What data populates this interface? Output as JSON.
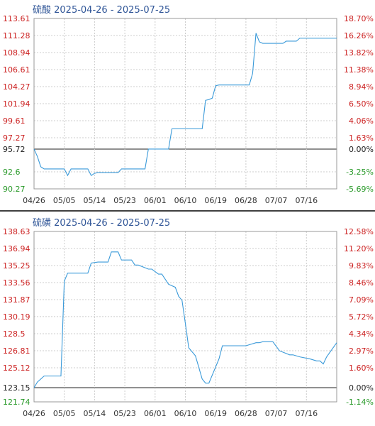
{
  "colors": {
    "line": "#3a9ad9",
    "left_up": "#cc2222",
    "left_down": "#2a9a2a",
    "right_up": "#cc2222",
    "right_down": "#2a9a2a",
    "base": "#222222",
    "grid": "#cccccc",
    "title": "#2f5597",
    "separator": "#000000"
  },
  "chart_data": [
    {
      "type": "line",
      "title": "硫酸 2025-04-26 - 2025-07-25",
      "x_labels": [
        "04/26",
        "05/05",
        "05/14",
        "05/23",
        "06/01",
        "06/10",
        "06/19",
        "06/28",
        "07/07",
        "07/16"
      ],
      "y_ticks_left": [
        "113.61",
        "111.28",
        "108.94",
        "106.61",
        "104.27",
        "101.94",
        "99.61",
        "97.27",
        "95.72",
        "92.6",
        "90.27"
      ],
      "y_ticks_right": [
        "18.70%",
        "16.26%",
        "13.82%",
        "11.38%",
        "8.94%",
        "6.50%",
        "4.06%",
        "1.63%",
        "0.00%",
        "-3.25%",
        "-5.69%"
      ],
      "ylim": [
        90.27,
        113.61
      ],
      "base_value": 95.72,
      "grid": true,
      "x": [
        "04/26",
        "04/27",
        "04/28",
        "04/29",
        "05/05",
        "05/06",
        "05/07",
        "05/08",
        "05/12",
        "05/13",
        "05/14",
        "05/15",
        "05/16",
        "05/21",
        "05/22",
        "05/23",
        "05/29",
        "05/30",
        "05/31",
        "06/05",
        "06/06",
        "06/07",
        "06/15",
        "06/16",
        "06/17",
        "06/18",
        "06/19",
        "06/20",
        "06/29",
        "06/30",
        "07/01",
        "07/02",
        "07/03",
        "07/09",
        "07/10",
        "07/13",
        "07/14",
        "07/25"
      ],
      "y": [
        95.72,
        94.7,
        93.3,
        93.0,
        93.0,
        92.1,
        93.0,
        93.0,
        93.0,
        92.1,
        92.4,
        92.5,
        92.5,
        92.5,
        93.0,
        93.0,
        93.0,
        95.72,
        95.72,
        95.72,
        98.5,
        98.5,
        98.5,
        102.4,
        102.5,
        102.7,
        104.4,
        104.5,
        104.5,
        106.1,
        111.6,
        110.4,
        110.2,
        110.2,
        110.5,
        110.5,
        110.9,
        110.9
      ]
    },
    {
      "type": "line",
      "title": "硫磺 2025-04-26 - 2025-07-25",
      "x_labels": [
        "04/26",
        "05/05",
        "05/14",
        "05/23",
        "06/01",
        "06/10",
        "06/19",
        "06/28",
        "07/07",
        "07/16"
      ],
      "y_ticks_left": [
        "138.63",
        "136.94",
        "135.25",
        "133.56",
        "131.87",
        "130.19",
        "128.5",
        "126.81",
        "125.12",
        "123.15",
        "121.74"
      ],
      "y_ticks_right": [
        "12.58%",
        "11.20%",
        "9.83%",
        "8.46%",
        "7.09%",
        "5.72%",
        "4.34%",
        "2.97%",
        "1.60%",
        "0.00%",
        "-1.14%"
      ],
      "ylim": [
        121.74,
        138.63
      ],
      "base_value": 123.15,
      "grid": true,
      "x": [
        "04/26",
        "04/27",
        "04/29",
        "04/30",
        "05/04",
        "05/05",
        "05/06",
        "05/07",
        "05/12",
        "05/13",
        "05/15",
        "05/18",
        "05/19",
        "05/21",
        "05/22",
        "05/25",
        "05/26",
        "05/27",
        "05/30",
        "05/31",
        "06/02",
        "06/03",
        "06/05",
        "06/07",
        "06/08",
        "06/09",
        "06/10",
        "06/11",
        "06/13",
        "06/15",
        "06/16",
        "06/17",
        "06/20",
        "06/21",
        "06/28",
        "07/01",
        "07/02",
        "07/03",
        "07/04",
        "07/06",
        "07/08",
        "07/11",
        "07/12",
        "07/14",
        "07/17",
        "07/19",
        "07/20",
        "07/21",
        "07/22",
        "07/25"
      ],
      "y": [
        123.15,
        123.7,
        124.3,
        124.3,
        124.3,
        133.7,
        134.5,
        134.5,
        134.5,
        135.5,
        135.6,
        135.6,
        136.6,
        136.6,
        135.8,
        135.8,
        135.3,
        135.3,
        134.9,
        134.9,
        134.4,
        134.4,
        133.4,
        133.1,
        132.2,
        131.8,
        129.5,
        127.1,
        126.3,
        124.0,
        123.6,
        123.6,
        126.0,
        127.3,
        127.3,
        127.6,
        127.6,
        127.7,
        127.7,
        127.7,
        126.8,
        126.4,
        126.4,
        126.2,
        126.0,
        125.8,
        125.8,
        125.5,
        126.2,
        127.6
      ]
    }
  ]
}
